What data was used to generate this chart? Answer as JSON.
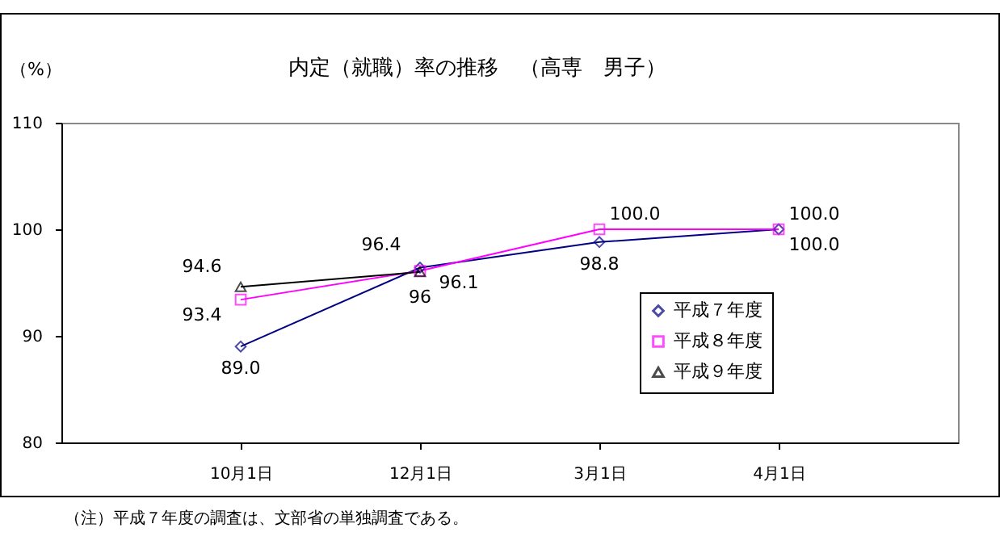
{
  "chart_data": {
    "type": "line",
    "title": "内定（就職）率の推移　（高専　男子）",
    "ylabel": "（%）",
    "categories": [
      "10月1日",
      "12月1日",
      "3月1日",
      "4月1日"
    ],
    "series": [
      {
        "name": "平成７年度",
        "color": "#000080",
        "marker": "diamond",
        "values": [
          89.0,
          96.4,
          98.8,
          100.0
        ],
        "value_labels": [
          "89.0",
          "96.4",
          "98.8",
          "100.0"
        ]
      },
      {
        "name": "平成８年度",
        "color": "#ff00ff",
        "marker": "square",
        "values": [
          93.4,
          96.1,
          100.0,
          100.0
        ],
        "value_labels": [
          "93.4",
          "96.1",
          "100.0",
          "100.0"
        ]
      },
      {
        "name": "平成９年度",
        "color": "#000000",
        "marker": "triangle",
        "values": [
          94.6,
          96,
          null,
          null
        ],
        "value_labels": [
          "94.6",
          "96",
          null,
          null
        ]
      }
    ],
    "ylim": [
      80,
      110
    ],
    "yticks": [
      80,
      90,
      100,
      110
    ],
    "legend": "right",
    "annotations": [
      "（注）平成７年度の調査は、文部省の単独調査である。"
    ]
  }
}
